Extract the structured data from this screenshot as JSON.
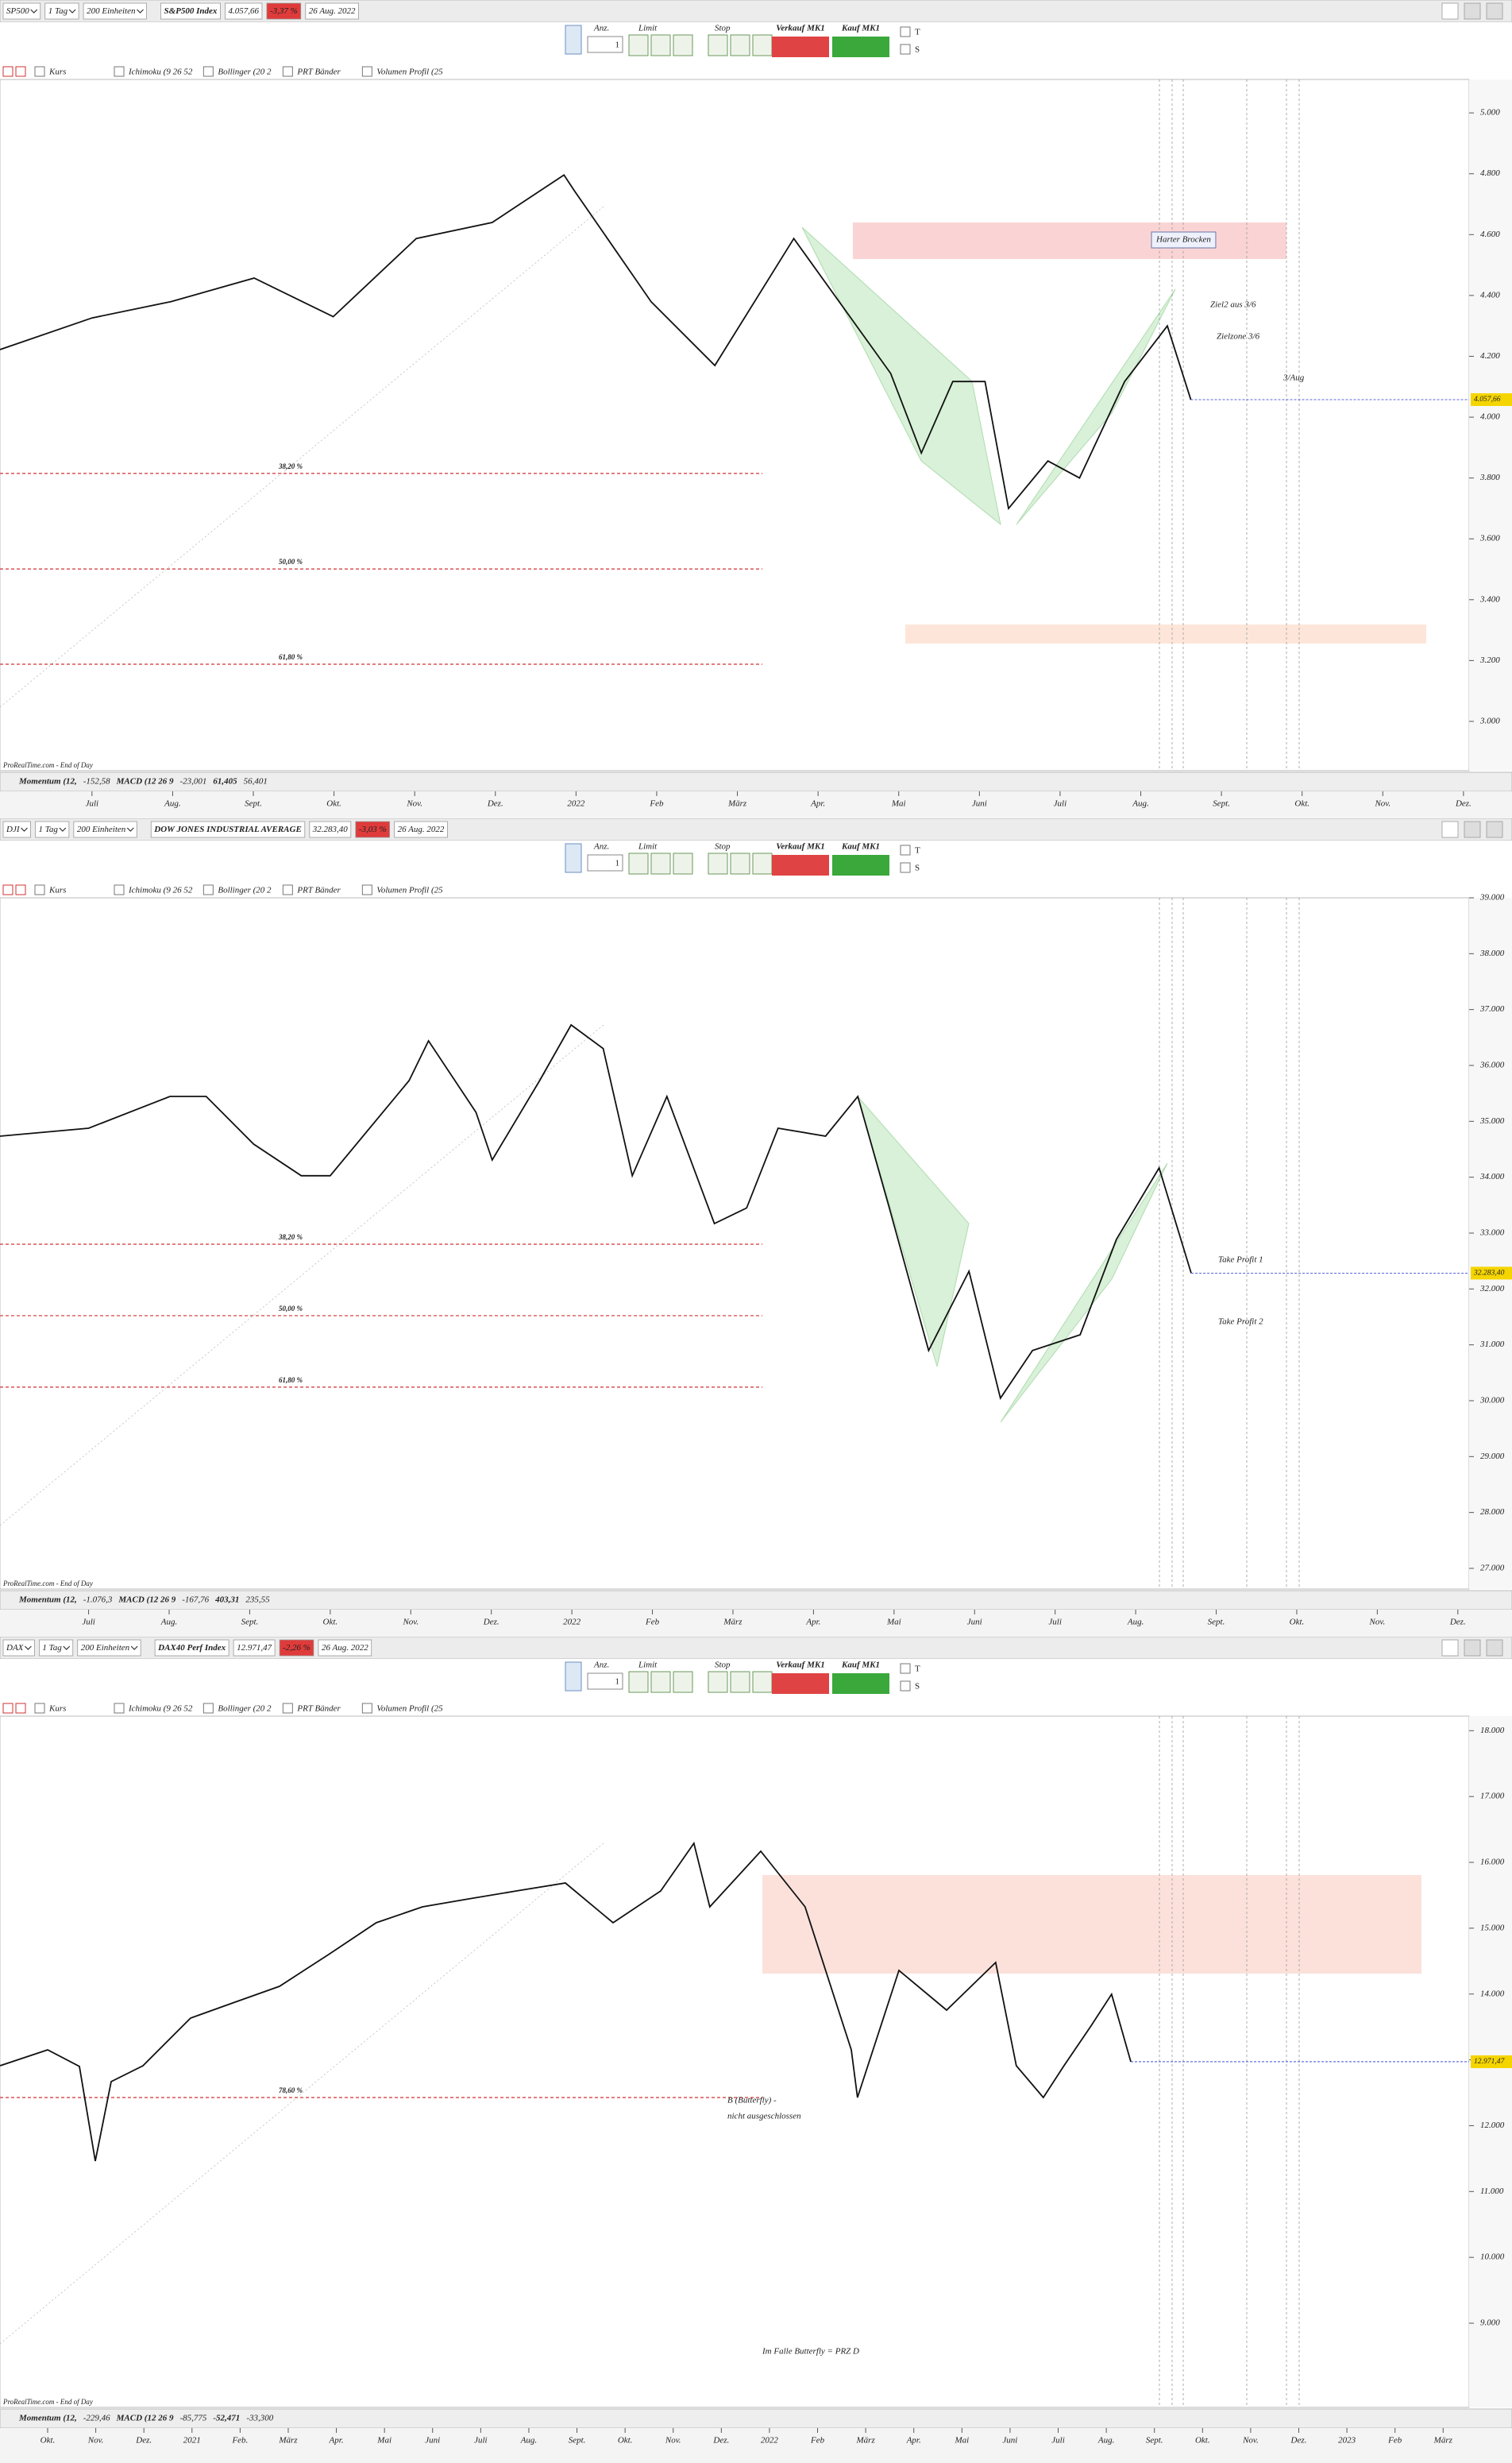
{
  "toolbar": {
    "qty_label": "Anz.",
    "qty": 1,
    "limit": "Limit",
    "stop": "Stop",
    "sell": "Verkauf MK1",
    "buy": "Kauf MK1",
    "t": "T",
    "s": "S"
  },
  "chart_data": [
    {
      "type": "line",
      "symbol": "SP500",
      "period": "1 Tag",
      "units": "200 Einheiten",
      "title": "S&P500 Index",
      "change": "-3,37 %",
      "date": "26 Aug. 2022",
      "color": "#111111",
      "x": [
        -1.14,
        0,
        0.98,
        2.01,
        2.99,
        4.02,
        4.96,
        5.85,
        5.98,
        6.93,
        7.72,
        8.7,
        9.9,
        10.28,
        10.67,
        11.07,
        11.36,
        11.85,
        12.24,
        12.8,
        13.33,
        13.62
      ],
      "values": [
        4222,
        4326,
        4380,
        4457,
        4330,
        4587,
        4640,
        4796,
        4744,
        4380,
        4170,
        4587,
        4144,
        3882,
        4117,
        4117,
        3700,
        3856,
        3800,
        4117,
        4300,
        4057
      ],
      "xlim": [
        -1.14,
        17.07
      ],
      "xticks": [
        {
          "value": 0,
          "label": "Juli"
        },
        {
          "value": 1,
          "label": "Aug."
        },
        {
          "value": 2,
          "label": "Sept."
        },
        {
          "value": 3,
          "label": "Okt."
        },
        {
          "value": 4,
          "label": "Nov."
        },
        {
          "value": 5,
          "label": "Dez."
        },
        {
          "value": 6,
          "label": "2022"
        },
        {
          "value": 7,
          "label": "Feb"
        },
        {
          "value": 8,
          "label": "März"
        },
        {
          "value": 9,
          "label": "Apr."
        },
        {
          "value": 10,
          "label": "Mai"
        },
        {
          "value": 11,
          "label": "Juni"
        },
        {
          "value": 12,
          "label": "Juli"
        },
        {
          "value": 13,
          "label": "Aug."
        },
        {
          "value": 14,
          "label": "Sept."
        },
        {
          "value": 15,
          "label": "Okt."
        },
        {
          "value": 16,
          "label": "Nov."
        },
        {
          "value": 17,
          "label": "Dez."
        }
      ],
      "ylim": [
        2838,
        5110
      ],
      "yticks": [
        {
          "value": 3000,
          "label": "3.000"
        },
        {
          "value": 3200,
          "label": "3.200"
        },
        {
          "value": 3400,
          "label": "3.400"
        },
        {
          "value": 3600,
          "label": "3.600"
        },
        {
          "value": 3800,
          "label": "3.800"
        },
        {
          "value": 4000,
          "label": "4.000"
        },
        {
          "value": 4200,
          "label": "4.200"
        },
        {
          "value": 4400,
          "label": "4.400"
        },
        {
          "value": 4600,
          "label": "4.600"
        },
        {
          "value": 4800,
          "label": "4.800"
        },
        {
          "value": 5000,
          "label": "5.000"
        }
      ],
      "last": {
        "value": 4057.66,
        "label": "4.057,66"
      },
      "levels": [
        {
          "value": 3815,
          "label": "38,20 %"
        },
        {
          "value": 3501,
          "label": "50,00 %"
        },
        {
          "value": 3188,
          "label": "61,80 %"
        }
      ],
      "notes": [
        "Harter Brocken",
        "Ziel2 aus 3/6",
        "Zielzone 3/6",
        "3/Aug"
      ],
      "indicators": [
        "Kurs",
        "Ichimoku (9 26 52",
        "Bollinger (20 2",
        "PRT Bänder",
        "Volumen Profil (25"
      ],
      "footer": [
        "ProRealTime.com - End of Day",
        "Momentum (12,",
        "-152,58",
        "MACD (12 26 9",
        "-23,001",
        "61,405",
        "56,401"
      ]
    },
    {
      "type": "line",
      "symbol": "DJI",
      "period": "1 Tag",
      "units": "200 Einheiten",
      "title": "DOW JONES INDUSTRIAL AVERAGE",
      "change": "-3,03 %",
      "date": "26 Aug. 2022",
      "color": "#111111",
      "x": [
        -1.1,
        0,
        1.01,
        1.46,
        2.05,
        2.64,
        3,
        3.98,
        4.22,
        4.81,
        5.01,
        5.6,
        5.99,
        6.39,
        6.75,
        7.18,
        7.77,
        8.17,
        8.56,
        9.15,
        9.55,
        9.94,
        10.43,
        10.93,
        11.32,
        11.72,
        12.31,
        12.76,
        13.29,
        13.69
      ],
      "values": [
        34735,
        34877,
        35445,
        35445,
        34593,
        34025,
        34025,
        35730,
        36441,
        35160,
        34309,
        35730,
        36725,
        36300,
        34025,
        35445,
        33171,
        33450,
        34877,
        34735,
        35445,
        33456,
        30897,
        32318,
        30044,
        30897,
        31181,
        32887,
        34166,
        32283
      ],
      "xlim": [
        -1.1,
        17.14
      ],
      "xticks": [
        {
          "value": 0,
          "label": "Juli"
        },
        {
          "value": 1,
          "label": "Aug."
        },
        {
          "value": 2,
          "label": "Sept."
        },
        {
          "value": 3,
          "label": "Okt."
        },
        {
          "value": 4,
          "label": "Nov."
        },
        {
          "value": 5,
          "label": "Dez."
        },
        {
          "value": 6,
          "label": "2022"
        },
        {
          "value": 7,
          "label": "Feb"
        },
        {
          "value": 8,
          "label": "März"
        },
        {
          "value": 9,
          "label": "Apr."
        },
        {
          "value": 10,
          "label": "Mai"
        },
        {
          "value": 11,
          "label": "Juni"
        },
        {
          "value": 12,
          "label": "Juli"
        },
        {
          "value": 13,
          "label": "Aug."
        },
        {
          "value": 14,
          "label": "Sept."
        },
        {
          "value": 15,
          "label": "Okt."
        },
        {
          "value": 16,
          "label": "Nov."
        },
        {
          "value": 17,
          "label": "Dez."
        }
      ],
      "ylim": [
        26630,
        39000
      ],
      "yticks": [
        {
          "value": 27000,
          "label": "27.000"
        },
        {
          "value": 28000,
          "label": "28.000"
        },
        {
          "value": 29000,
          "label": "29.000"
        },
        {
          "value": 30000,
          "label": "30.000"
        },
        {
          "value": 31000,
          "label": "31.000"
        },
        {
          "value": 32000,
          "label": "32.000"
        },
        {
          "value": 33000,
          "label": "33.000"
        },
        {
          "value": 34000,
          "label": "34.000"
        },
        {
          "value": 35000,
          "label": "35.000"
        },
        {
          "value": 36000,
          "label": "36.000"
        },
        {
          "value": 37000,
          "label": "37.000"
        },
        {
          "value": 38000,
          "label": "38.000"
        },
        {
          "value": 39000,
          "label": "39.000"
        }
      ],
      "last": {
        "value": 32283.4,
        "label": "32.283,40"
      },
      "levels": [
        {
          "value": 32801,
          "label": "38,20 %"
        },
        {
          "value": 31522,
          "label": "50,00 %"
        },
        {
          "value": 30243,
          "label": "61,80 %"
        }
      ],
      "notes": [
        "Take Profit 1",
        "Take Profit 2"
      ],
      "indicators": [
        "Kurs",
        "Ichimoku (9 26 52",
        "Bollinger (20 2",
        "PRT Bänder",
        "Volumen Profil (25"
      ],
      "footer": [
        "ProRealTime.com - End of Day",
        "Momentum (12,",
        "-1.076,3",
        "MACD (12 26 9",
        "-167,76",
        "403,31",
        "235,55"
      ]
    },
    {
      "type": "line",
      "symbol": "DAX",
      "period": "1 Tag",
      "units": "200 Einheiten",
      "title": "DAX40 Perf Index",
      "change": "-2,26 %",
      "date": "26 Aug. 2022",
      "color": "#111111",
      "x": [
        -0.99,
        0,
        0.66,
        0.99,
        1.32,
        1.98,
        2.97,
        3.89,
        4.82,
        5.84,
        6.83,
        7.79,
        8.75,
        9.74,
        10.76,
        11.75,
        12.74,
        13.43,
        13.76,
        14.82,
        15.74,
        16.7,
        16.83,
        17.69,
        18.68,
        19.7,
        20.13,
        20.69,
        21.12,
        21.68,
        22.11,
        22.51
      ],
      "values": [
        12910,
        13152,
        12900,
        11462,
        12669,
        12910,
        13635,
        13876,
        14117,
        14600,
        15083,
        15324,
        15445,
        15566,
        15686,
        15083,
        15566,
        16290,
        15324,
        16169,
        15324,
        13152,
        12428,
        14359,
        13755,
        14479,
        12910,
        12428,
        12910,
        13514,
        13997,
        12971
      ],
      "xlim": [
        -0.99,
        29.54
      ],
      "xticks": [
        {
          "value": 0,
          "label": "Okt."
        },
        {
          "value": 1,
          "label": "Nov."
        },
        {
          "value": 2,
          "label": "Dez."
        },
        {
          "value": 3,
          "label": "2021"
        },
        {
          "value": 4,
          "label": "Feb."
        },
        {
          "value": 5,
          "label": "März"
        },
        {
          "value": 6,
          "label": "Apr."
        },
        {
          "value": 7,
          "label": "Mai"
        },
        {
          "value": 8,
          "label": "Juni"
        },
        {
          "value": 9,
          "label": "Juli"
        },
        {
          "value": 10,
          "label": "Aug."
        },
        {
          "value": 11,
          "label": "Sept."
        },
        {
          "value": 12,
          "label": "Okt."
        },
        {
          "value": 13,
          "label": "Nov."
        },
        {
          "value": 14,
          "label": "Dez."
        },
        {
          "value": 15,
          "label": "2022"
        },
        {
          "value": 16,
          "label": "Feb"
        },
        {
          "value": 17,
          "label": "März"
        },
        {
          "value": 18,
          "label": "Apr."
        },
        {
          "value": 19,
          "label": "Mai"
        },
        {
          "value": 20,
          "label": "Juni"
        },
        {
          "value": 21,
          "label": "Juli"
        },
        {
          "value": 22,
          "label": "Aug."
        },
        {
          "value": 23,
          "label": "Sept."
        },
        {
          "value": 24,
          "label": "Okt."
        },
        {
          "value": 25,
          "label": "Nov."
        },
        {
          "value": 26,
          "label": "Dez."
        },
        {
          "value": 27,
          "label": "2023"
        },
        {
          "value": 28,
          "label": "Feb"
        },
        {
          "value": 29,
          "label": "März"
        }
      ],
      "ylim": [
        7721,
        18221
      ],
      "yticks": [
        {
          "value": 9000,
          "label": "9.000"
        },
        {
          "value": 10000,
          "label": "10.000"
        },
        {
          "value": 11000,
          "label": "11.000"
        },
        {
          "value": 12000,
          "label": "12.000"
        },
        {
          "value": 13000,
          "label": "13.000"
        },
        {
          "value": 14000,
          "label": "14.000"
        },
        {
          "value": 15000,
          "label": "15.000"
        },
        {
          "value": 16000,
          "label": "16.000"
        },
        {
          "value": 17000,
          "label": "17.000"
        },
        {
          "value": 18000,
          "label": "18.000"
        }
      ],
      "last": {
        "value": 12971.47,
        "label": "12.971,47"
      },
      "levels": [
        {
          "value": 12428,
          "label": "78,60 %"
        }
      ],
      "notes": [
        "B (Butterfly) -",
        "nicht ausgeschlossen",
        "Im Falle Butterfly = PRZ D"
      ],
      "indicators": [
        "Kurs",
        "Ichimoku (9 26 52",
        "Bollinger (20 2",
        "PRT Bänder",
        "Volumen Profil (25"
      ],
      "footer": [
        "ProRealTime.com - End of Day",
        "Momentum (12,",
        "-229,46",
        "MACD (12 26 9",
        "-85,775",
        "-52,471",
        "-33,300"
      ]
    }
  ]
}
